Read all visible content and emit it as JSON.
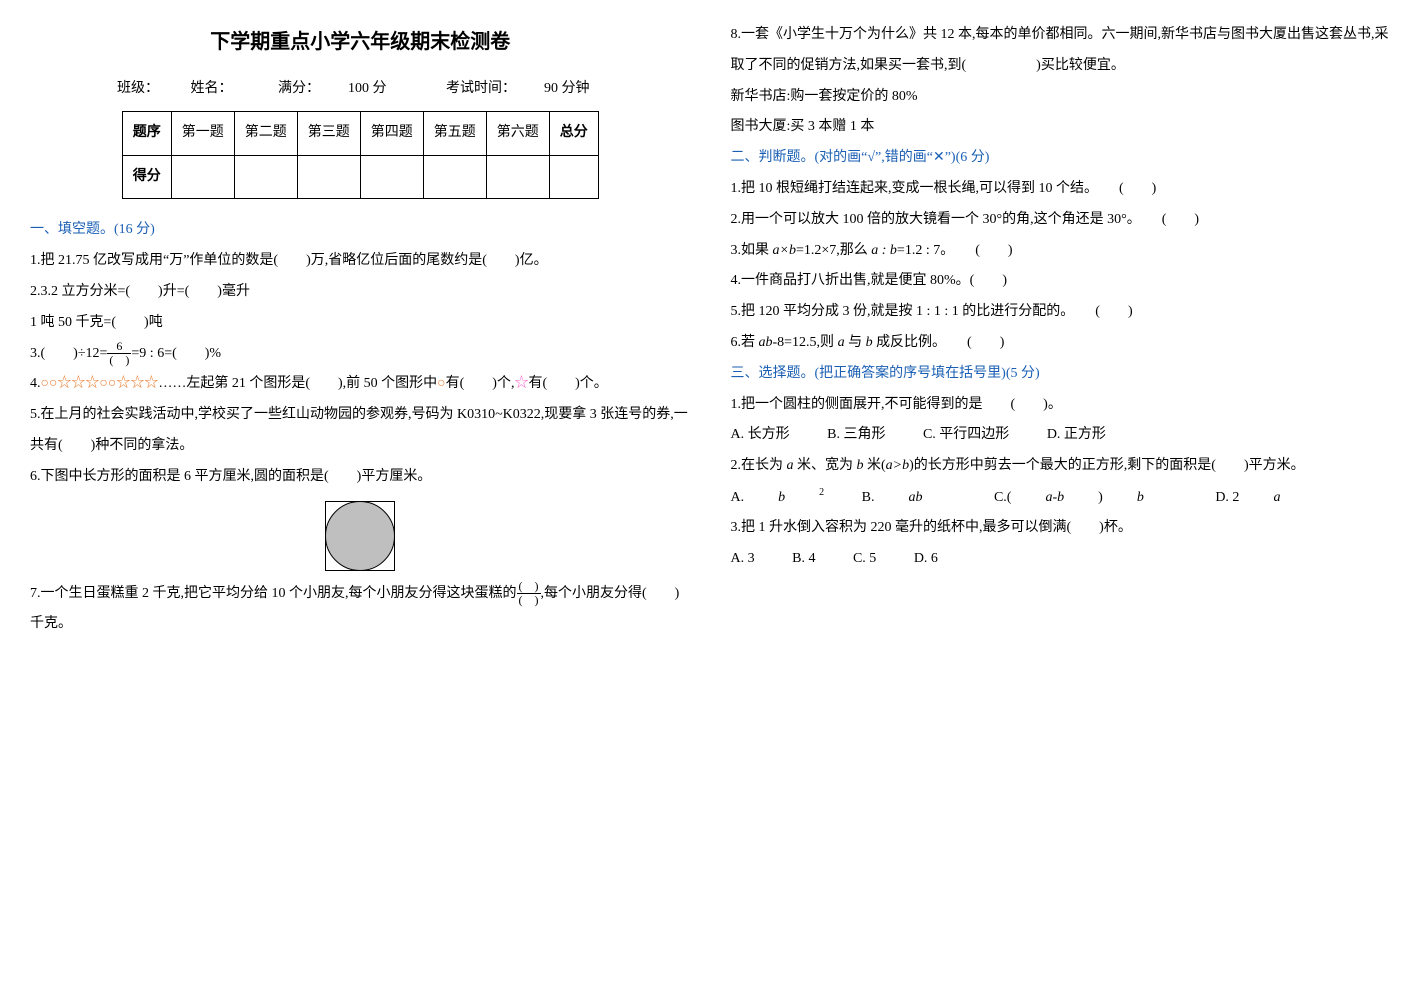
{
  "title": "下学期重点小学六年级期末检测卷",
  "meta": {
    "class_label": "班级：",
    "name_label": "姓名：",
    "full_label": "满分：",
    "full_value": "100 分",
    "time_label": "考试时间：",
    "time_value": "90 分钟"
  },
  "score_table": {
    "row_hdr1": "题序",
    "row_hdr2": "得分",
    "cols": [
      "第一题",
      "第二题",
      "第三题",
      "第四题",
      "第五题",
      "第六题",
      "总分"
    ]
  },
  "sec1": {
    "head": "一、填空题。(16 分)",
    "q1": "1.把 21.75 亿改写成用“万”作单位的数是(　　)万,省略亿位后面的尾数约是(　　)亿。",
    "q2": "2.3.2 立方分米=(　　)升=(　　)毫升",
    "q2b": "1 吨 50 千克=(　　)吨",
    "q3a": "3.(　　)÷12=",
    "q3b": "=9 : 6=(　　)%",
    "q3_num": "6",
    "q3_den": "(　)",
    "q4a": "4.",
    "q4_seq": "○○☆☆☆○○☆☆☆",
    "q4b": "……左起第 21 个图形是(　　),前 50 个图形中",
    "q4c": "有(　　)个,",
    "q4d": "有(　　)个。",
    "q4_o": "○",
    "q4_s": "☆",
    "q5": "5.在上月的社会实践活动中,学校买了一些红山动物园的参观券,号码为 K0310~K0322,现要拿 3 张连号的券,一共有(　　)种不同的拿法。",
    "q6": "6.下图中长方形的面积是 6 平方厘米,圆的面积是(　　)平方厘米。",
    "q7a": "7.一个生日蛋糕重 2 千克,把它平均分给 10 个小朋友,每个小朋友分得这块蛋糕的",
    "q7_num": "(　)",
    "q7_den": "(　)",
    "q7b": ",每个小朋友分得(　　)千克。"
  },
  "q8": {
    "a": "8.一套《小学生十万个为什么》共 12 本,每本的单价都相同。六一期间,新华书店与图书大厦出售这套丛书,采取了不同的促销方法,如果买一套书,到(　　　　　)买比较便宜。",
    "b": "新华书店:购一套按定价的 80%",
    "c": "图书大厦:买 3 本赠 1 本"
  },
  "sec2": {
    "head": "二、判断题。(对的画“√”,错的画“✕”)(6 分)",
    "q1": "1.把 10 根短绳打结连起来,变成一根长绳,可以得到 10 个结。　　(　　)",
    "q2": "2.用一个可以放大 100 倍的放大镜看一个 30°的角,这个角还是 30°。　　(　　)",
    "q3a": "3.如果 ",
    "q3b": "=1.2×7,那么 ",
    "q3c": "=1.2 : 7。　　(　　)",
    "q3_axb": "a×b",
    "q3_ab": "a : b",
    "q4": "4.一件商品打八折出售,就是便宜 80%。(　　)",
    "q5": "5.把 120 平均分成 3 份,就是按 1 : 1 : 1 的比进行分配的。　　(　　)",
    "q6a": "6.若 ",
    "q6_ab": "ab",
    "q6b": "-8=12.5,则 ",
    "q6_a": "a",
    "q6c": " 与 ",
    "q6_b2": "b",
    "q6d": " 成反比例。　　(　　)"
  },
  "sec3": {
    "head": "三、选择题。(把正确答案的序号填在括号里)(5 分)",
    "q1": "1.把一个圆柱的侧面展开,不可能得到的是　　(　　)。",
    "q1a": "A.  长方形",
    "q1b": "B.  三角形",
    "q1c": "C.  平行四边形",
    "q1d": "D.  正方形",
    "q2a": "2.在长为 ",
    "q2_a": "a",
    "q2b": " 米、宽为 ",
    "q2_b": "b",
    "q2c": " 米(",
    "q2_agb": "a>b",
    "q2d": ")的长方形中剪去一个最大的正方形,剩下的面积是(　　)平方米。",
    "q2opt_a_pre": "A. ",
    "q2opt_a": "b",
    "q2opt_b_pre": "B. ",
    "q2opt_b": "ab",
    "q2opt_c_pre": "C.(",
    "q2opt_c_mid": "a-b",
    "q2opt_c_post": ")",
    "q2opt_c_b": "b",
    "q2opt_d_pre": "D. 2",
    "q2opt_d": "a",
    "q3": "3.把 1 升水倒入容积为 220 毫升的纸杯中,最多可以倒满(　　)杯。",
    "q3a": "A. 3",
    "q3b": "B. 4",
    "q3c": "C. 5",
    "q3d": "D. 6"
  },
  "colors": {
    "section_head": "#1a5fb4",
    "orange": "#ed7d31",
    "pink": "#ff66cc"
  }
}
